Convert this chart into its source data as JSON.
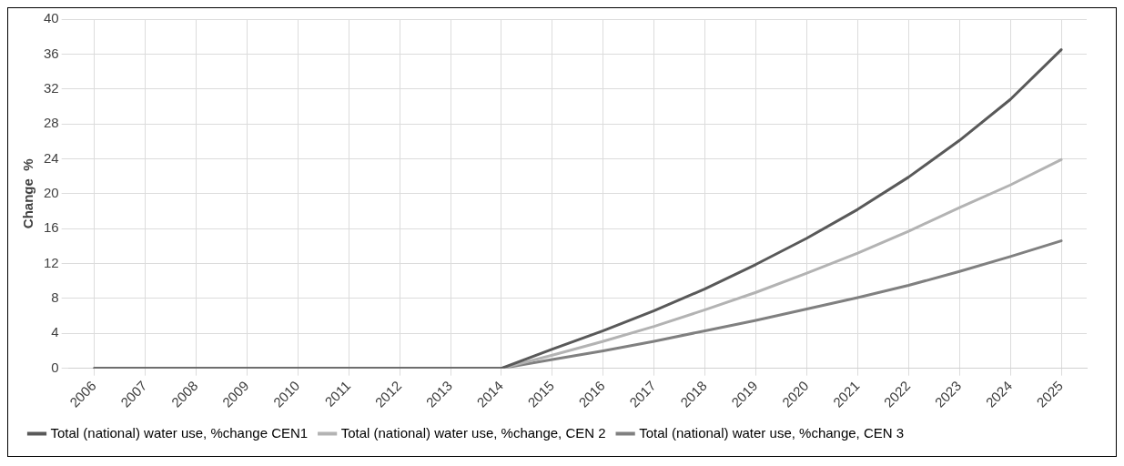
{
  "chart_data": {
    "type": "line",
    "ylabel": "Change  %",
    "categories": [
      "2006",
      "2007",
      "2008",
      "2009",
      "2010",
      "2011",
      "2012",
      "2013",
      "2014",
      "2015",
      "2016",
      "2017",
      "2018",
      "2019",
      "2020",
      "2021",
      "2022",
      "2023",
      "2024",
      "2025"
    ],
    "series": [
      {
        "name": "Total (national) water use, %change CEN1",
        "color": "#595959",
        "values": [
          0,
          0,
          0,
          0,
          0,
          0,
          0,
          0,
          0,
          2.2,
          4.3,
          6.6,
          9.1,
          11.9,
          14.9,
          18.2,
          21.9,
          26.1,
          30.8,
          36.5
        ]
      },
      {
        "name": "Total (national) water use, %change, CEN 2",
        "color": "#b3b3b3",
        "values": [
          0,
          0,
          0,
          0,
          0,
          0,
          0,
          0,
          0,
          1.5,
          3.1,
          4.8,
          6.7,
          8.7,
          10.9,
          13.2,
          15.7,
          18.4,
          21.0,
          23.9
        ]
      },
      {
        "name": "Total (national) water use, %change, CEN 3",
        "color": "#808080",
        "values": [
          0,
          0,
          0,
          0,
          0,
          0,
          0,
          0,
          0,
          1.0,
          2.0,
          3.1,
          4.3,
          5.5,
          6.8,
          8.1,
          9.5,
          11.1,
          12.8,
          14.6
        ]
      }
    ],
    "ylim": [
      0,
      40
    ],
    "yticks": [
      0,
      4,
      8,
      12,
      16,
      20,
      24,
      28,
      32,
      36,
      40
    ],
    "grid": true,
    "legend": "bottom",
    "marker": "none",
    "line_style": "solid"
  }
}
